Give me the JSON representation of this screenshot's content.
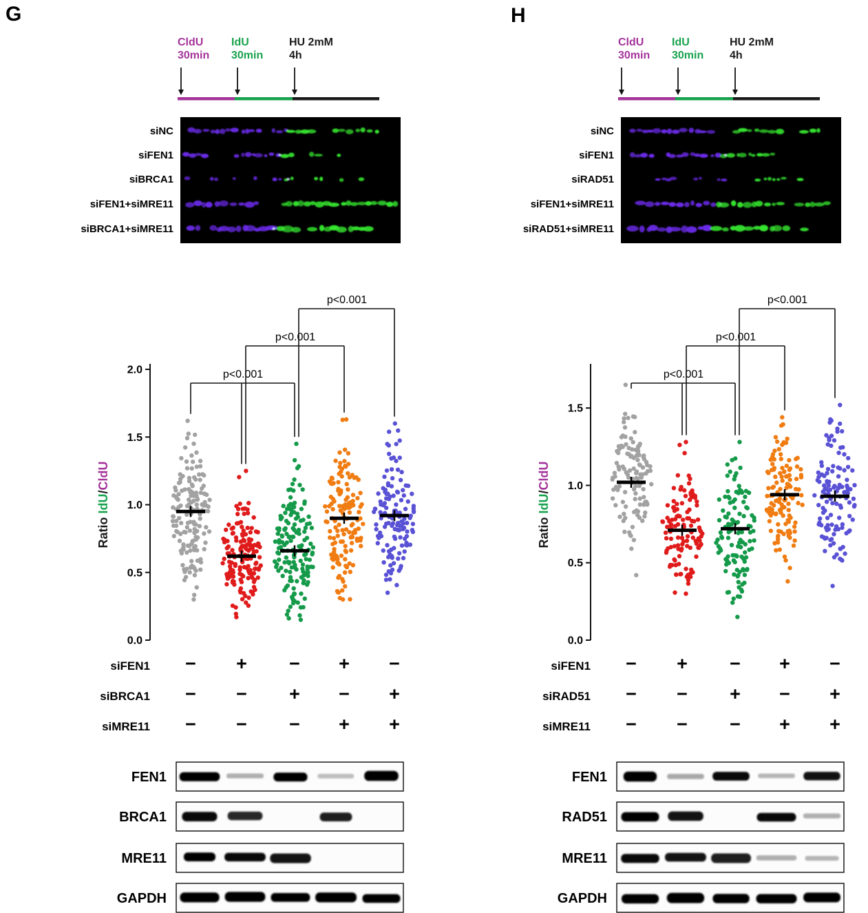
{
  "colors": {
    "background": "#FFFFFF",
    "fiber_background": "#000000",
    "fiber_cldu": "#6B2BEA",
    "fiber_idu": "#35E52F",
    "cldu_purple": "#A4339A",
    "idu_green": "#18A24D",
    "hu_black": "#1A1A1A"
  },
  "figure": {
    "panels": [
      {
        "letter": "G",
        "schematic": {
          "steps": [
            {
              "line1": "CldU",
              "line2": "30min",
              "color": "#A4339A"
            },
            {
              "line1": "IdU",
              "line2": "30min",
              "color": "#18A24D"
            },
            {
              "line1": "HU 2mM",
              "line2": "4h",
              "color": "#1A1A1A"
            }
          ]
        },
        "fiber_labels": [
          "siNC",
          "siFEN1",
          "siBRCA1",
          "siFEN1+siMRE11",
          "siBRCA1+siMRE11"
        ],
        "matrix_rows": [
          {
            "label": "siFEN1",
            "values": [
              "−",
              "+",
              "−",
              "+",
              "−"
            ]
          },
          {
            "label": "siBRCA1",
            "values": [
              "−",
              "−",
              "+",
              "−",
              "+"
            ]
          },
          {
            "label": "siMRE11",
            "values": [
              "−",
              "−",
              "−",
              "+",
              "+"
            ]
          }
        ],
        "blots": [
          {
            "label": "FEN1",
            "band_intensity": [
              1,
              0.15,
              1,
              0.07,
              1
            ]
          },
          {
            "label": "BRCA1",
            "band_intensity": [
              0.95,
              0.8,
              0.02,
              0.85,
              0.02
            ]
          },
          {
            "label": "MRE11",
            "band_intensity": [
              1,
              0.95,
              0.9,
              0.03,
              0.03
            ]
          },
          {
            "label": "GAPDH",
            "band_intensity": [
              1,
              1,
              1,
              1,
              1
            ]
          }
        ]
      },
      {
        "letter": "H",
        "schematic": {
          "steps": [
            {
              "line1": "CldU",
              "line2": "30min",
              "color": "#A4339A"
            },
            {
              "line1": "IdU",
              "line2": "30min",
              "color": "#18A24D"
            },
            {
              "line1": "HU 2mM",
              "line2": "4h",
              "color": "#1A1A1A"
            }
          ]
        },
        "fiber_labels": [
          "siNC",
          "siFEN1",
          "siRAD51",
          "siFEN1+siMRE11",
          "siRAD51+siMRE11"
        ],
        "matrix_rows": [
          {
            "label": "siFEN1",
            "values": [
              "−",
              "+",
              "−",
              "+",
              "−"
            ]
          },
          {
            "label": "siRAD51",
            "values": [
              "−",
              "−",
              "+",
              "−",
              "+"
            ]
          },
          {
            "label": "siMRE11",
            "values": [
              "−",
              "−",
              "−",
              "+",
              "+"
            ]
          }
        ],
        "blots": [
          {
            "label": "FEN1",
            "band_intensity": [
              1,
              0.18,
              0.95,
              0.12,
              0.92
            ]
          },
          {
            "label": "RAD51",
            "band_intensity": [
              1,
              0.9,
              0.04,
              0.95,
              0.15
            ]
          },
          {
            "label": "MRE11",
            "band_intensity": [
              0.95,
              0.9,
              0.85,
              0.15,
              0.12
            ]
          },
          {
            "label": "GAPDH",
            "band_intensity": [
              1,
              1,
              1,
              1,
              1
            ]
          }
        ]
      }
    ]
  },
  "chart_data": [
    {
      "type": "scatter",
      "subtype": "beeswarm-dotplot-with-mean",
      "title": "",
      "ylabel_parts": [
        {
          "text": "Ratio ",
          "color": "#1A1A1A"
        },
        {
          "text": "IdU",
          "color": "#18A24D"
        },
        {
          "text": "/",
          "color": "#1A1A1A"
        },
        {
          "text": "CldU",
          "color": "#A4339A"
        }
      ],
      "ylim": [
        0,
        2.0
      ],
      "ytick_labels": [
        "0.0",
        "0.5",
        "1.0",
        "1.5",
        "2.0"
      ],
      "categories": [
        "siNC",
        "siFEN1",
        "siBRCA1",
        "siFEN1+siMRE11",
        "siBRCA1+siMRE11"
      ],
      "groups": [
        {
          "name": "siNC",
          "color": "#A2A2A2",
          "mean": 0.95,
          "sd": 0.27,
          "min": 0.3,
          "max": 1.62,
          "n": 160
        },
        {
          "name": "siFEN1",
          "color": "#E01B1B",
          "mean": 0.62,
          "sd": 0.22,
          "min": 0.17,
          "max": 1.25,
          "n": 160
        },
        {
          "name": "siBRCA1",
          "color": "#159A4A",
          "mean": 0.66,
          "sd": 0.24,
          "min": 0.15,
          "max": 1.45,
          "n": 160
        },
        {
          "name": "siFEN1+siMRE11",
          "color": "#F07C12",
          "mean": 0.9,
          "sd": 0.28,
          "min": 0.3,
          "max": 1.63,
          "n": 150
        },
        {
          "name": "siBRCA1+siMRE11",
          "color": "#5A52D5",
          "mean": 0.92,
          "sd": 0.26,
          "min": 0.35,
          "max": 1.6,
          "n": 140
        }
      ],
      "significance_brackets": [
        {
          "label": "p<0.001",
          "from": 0,
          "to": 2,
          "mid_drops": [
            1
          ],
          "level": 0
        },
        {
          "label": "p<0.001",
          "from": 1,
          "to": 3,
          "mid_drops": [],
          "level": 1
        },
        {
          "label": "p<0.001",
          "from": 2,
          "to": 4,
          "mid_drops": [],
          "level": 2
        }
      ]
    },
    {
      "type": "scatter",
      "subtype": "beeswarm-dotplot-with-mean",
      "title": "",
      "ylabel_parts": [
        {
          "text": "Ratio ",
          "color": "#1A1A1A"
        },
        {
          "text": "IdU",
          "color": "#18A24D"
        },
        {
          "text": "/",
          "color": "#1A1A1A"
        },
        {
          "text": "CldU",
          "color": "#A4339A"
        }
      ],
      "ylim": [
        0,
        1.75
      ],
      "ytick_labels": [
        "0.0",
        "0.5",
        "1.0",
        "1.5"
      ],
      "categories": [
        "siNC",
        "siFEN1",
        "siRAD51",
        "siFEN1+siMRE11",
        "siRAD51+siMRE11"
      ],
      "groups": [
        {
          "name": "siNC",
          "color": "#A2A2A2",
          "mean": 1.02,
          "sd": 0.21,
          "min": 0.42,
          "max": 1.65,
          "n": 120
        },
        {
          "name": "siFEN1",
          "color": "#E01B1B",
          "mean": 0.71,
          "sd": 0.19,
          "min": 0.3,
          "max": 1.28,
          "n": 120
        },
        {
          "name": "siRAD51",
          "color": "#159A4A",
          "mean": 0.72,
          "sd": 0.22,
          "min": 0.15,
          "max": 1.28,
          "n": 125
        },
        {
          "name": "siFEN1+siMRE11",
          "color": "#F07C12",
          "mean": 0.94,
          "sd": 0.22,
          "min": 0.38,
          "max": 1.44,
          "n": 130
        },
        {
          "name": "siRAD51+siMRE11",
          "color": "#5A52D5",
          "mean": 0.93,
          "sd": 0.24,
          "min": 0.35,
          "max": 1.52,
          "n": 130
        }
      ],
      "significance_brackets": [
        {
          "label": "p<0.001",
          "from": 0,
          "to": 2,
          "mid_drops": [
            1
          ],
          "level": 0
        },
        {
          "label": "p<0.001",
          "from": 1,
          "to": 3,
          "mid_drops": [],
          "level": 1
        },
        {
          "label": "p<0.001",
          "from": 2,
          "to": 4,
          "mid_drops": [],
          "level": 2
        }
      ]
    }
  ]
}
